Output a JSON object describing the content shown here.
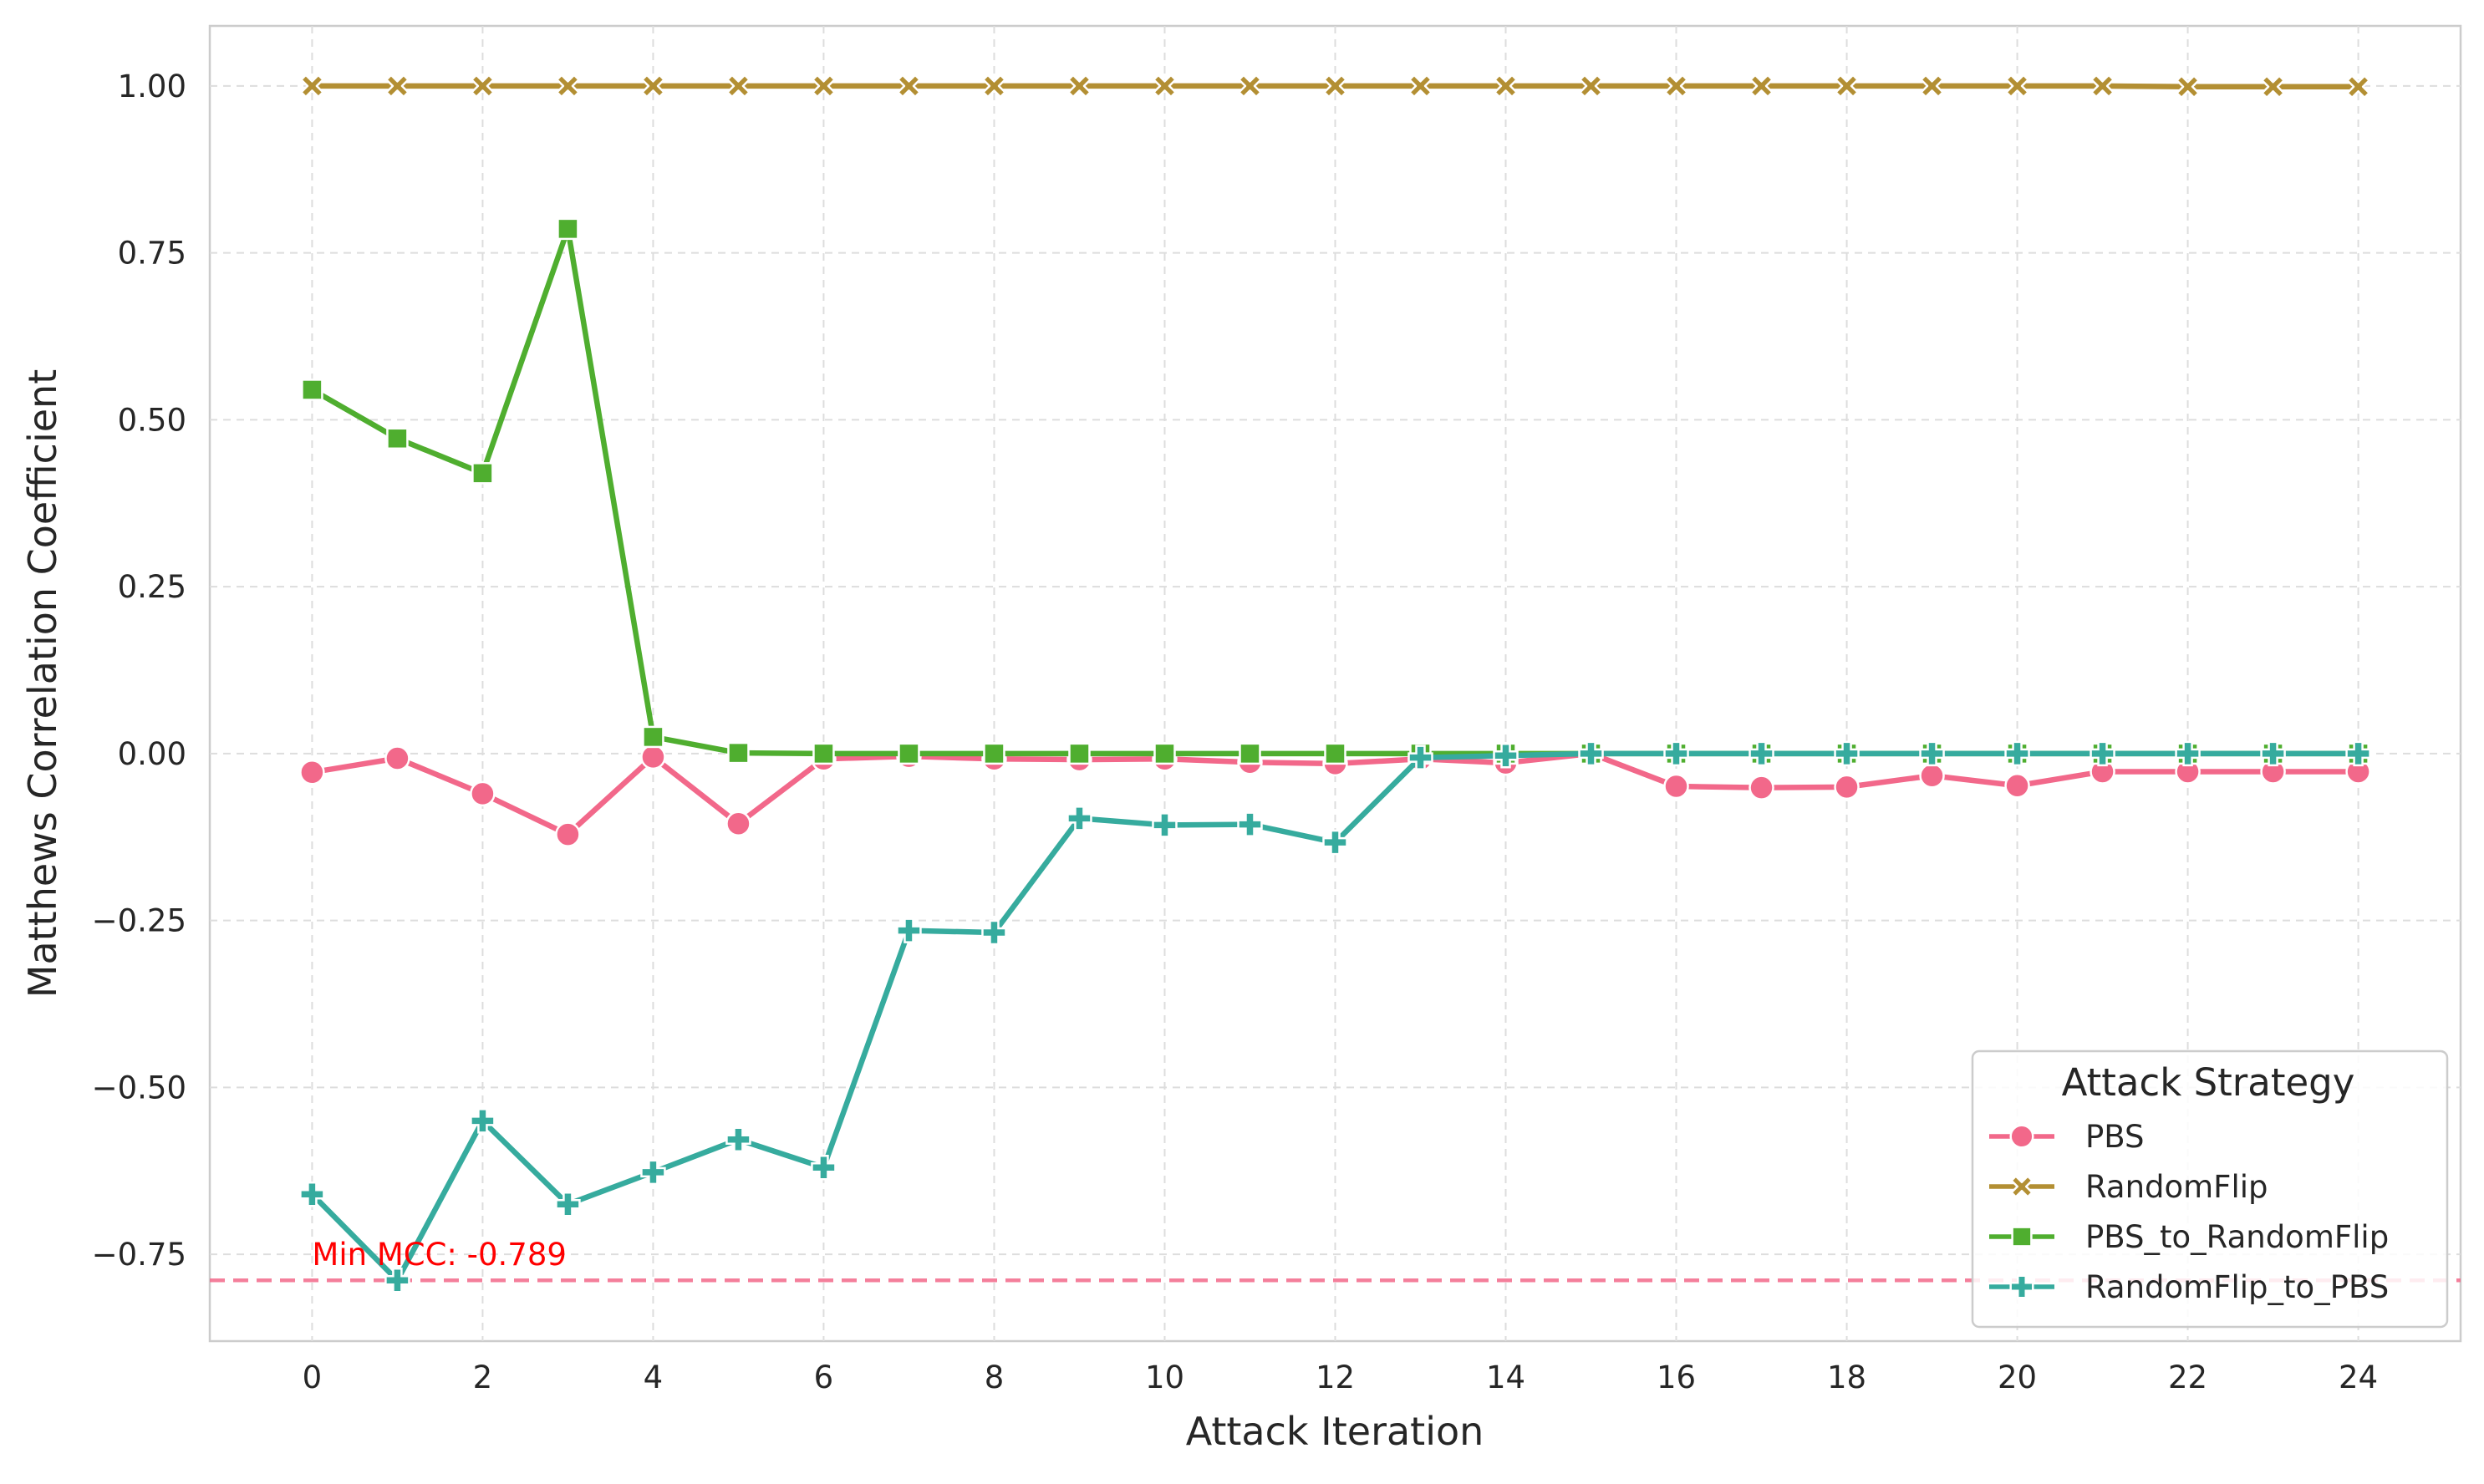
{
  "chart_data": {
    "type": "line",
    "xlabel": "Attack Iteration",
    "ylabel": "Matthews Correlation Coefficient",
    "xlim": [
      -1.2,
      25.2
    ],
    "ylim": [
      -0.88,
      1.09
    ],
    "xticks": [
      0,
      2,
      4,
      6,
      8,
      10,
      12,
      14,
      16,
      18,
      20,
      22,
      24
    ],
    "xtick_labels": [
      "0",
      "2",
      "4",
      "6",
      "8",
      "10",
      "12",
      "14",
      "16",
      "18",
      "20",
      "22",
      "24"
    ],
    "yticks": [
      1.0,
      0.75,
      0.5,
      0.25,
      0.0,
      -0.25,
      -0.5,
      -0.75
    ],
    "ytick_labels": [
      "1.00",
      "0.75",
      "0.50",
      "0.25",
      "0.00",
      "−0.25",
      "−0.50",
      "−0.75"
    ],
    "grid": true,
    "x": [
      0,
      1,
      2,
      3,
      4,
      5,
      6,
      7,
      8,
      9,
      10,
      11,
      12,
      13,
      14,
      15,
      16,
      17,
      18,
      19,
      20,
      21,
      22,
      23,
      24
    ],
    "series": [
      {
        "name": "PBS",
        "color": "#f2688a",
        "marker": "circle",
        "values": [
          -0.028,
          -0.007,
          -0.06,
          -0.121,
          -0.005,
          -0.105,
          -0.008,
          -0.004,
          -0.008,
          -0.009,
          -0.008,
          -0.013,
          -0.015,
          -0.008,
          -0.014,
          0.0,
          -0.049,
          -0.051,
          -0.05,
          -0.033,
          -0.048,
          -0.027,
          -0.027,
          -0.027,
          -0.027
        ]
      },
      {
        "name": "RandomFlip",
        "color": "#b38f33",
        "marker": "x",
        "values": [
          1.0,
          1.0,
          1.0,
          1.0,
          1.0,
          1.0,
          1.0,
          1.0,
          1.0,
          1.0,
          1.0,
          1.0,
          1.0,
          1.0,
          1.0,
          1.0,
          1.0,
          1.0,
          1.0,
          1.0,
          1.0,
          1.0,
          0.999,
          0.999,
          0.999
        ]
      },
      {
        "name": "PBS_to_RandomFlip",
        "color": "#4fae2f",
        "marker": "square",
        "values": [
          0.545,
          0.472,
          0.42,
          0.786,
          0.025,
          0.001,
          0.0,
          0.0,
          0.0,
          0.0,
          0.0,
          0.0,
          0.0,
          0.0,
          0.0,
          0.0,
          0.0,
          0.0,
          0.0,
          0.0,
          0.0,
          0.0,
          0.0,
          0.0,
          0.0
        ]
      },
      {
        "name": "RandomFlip_to_PBS",
        "color": "#36ab9e",
        "marker": "plus",
        "values": [
          -0.66,
          -0.789,
          -0.55,
          -0.675,
          -0.627,
          -0.578,
          -0.62,
          -0.265,
          -0.268,
          -0.097,
          -0.107,
          -0.106,
          -0.133,
          -0.006,
          -0.003,
          0.0,
          0.0,
          0.0,
          0.0,
          0.0,
          0.0,
          0.0,
          0.0,
          0.0,
          0.0
        ]
      }
    ],
    "hline": {
      "y": -0.789,
      "color": "#f2688a",
      "style": "dashed"
    },
    "annotation": {
      "text": "Min MCC: -0.789",
      "x": 0,
      "y": -0.75,
      "color": "#ff0000"
    },
    "legend": {
      "title": "Attack Strategy",
      "placement": "lower-right"
    }
  }
}
